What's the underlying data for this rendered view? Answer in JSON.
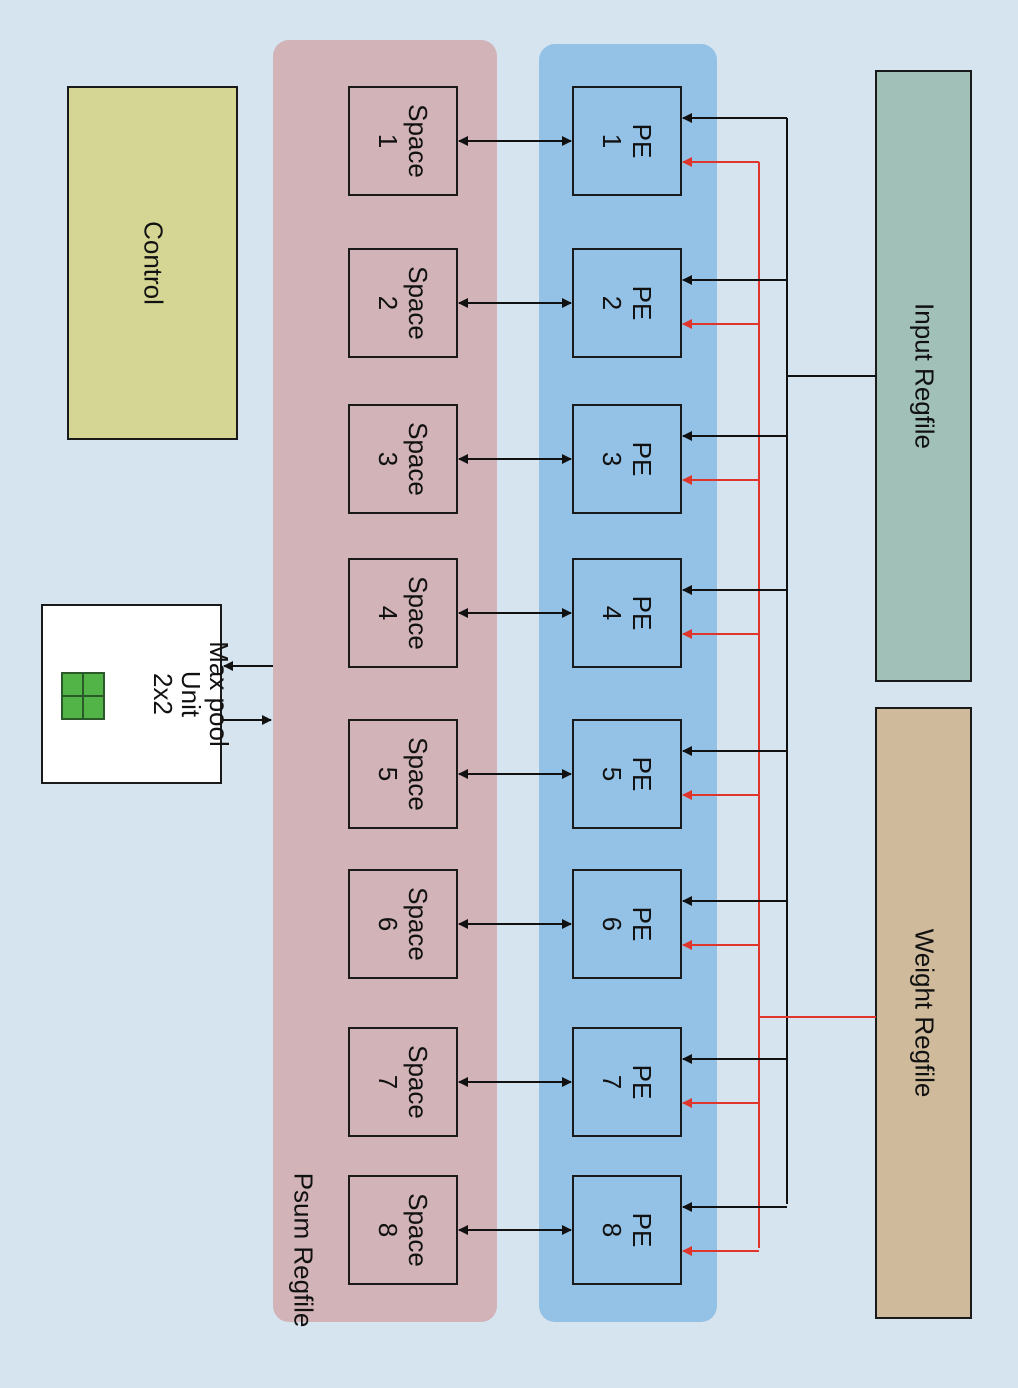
{
  "colors": {
    "background": "#d6e4f0",
    "psum_region": "#d1b3b8",
    "pe_region": "#94c2e6",
    "control": "#d5d693",
    "input_regfile": "#a0c0b8",
    "weight_regfile": "#cfbb9b",
    "input_wire": "#111111",
    "weight_wire": "#e0352b",
    "maxpool_grid": "#52b346"
  },
  "control": {
    "label": "Control"
  },
  "maxpool": {
    "line1": "Max pool",
    "line2": "Unit",
    "line3": "2x2"
  },
  "psum": {
    "label": "Psum Regfile",
    "cells": [
      {
        "name": "Space",
        "index": "1"
      },
      {
        "name": "Space",
        "index": "2"
      },
      {
        "name": "Space",
        "index": "3"
      },
      {
        "name": "Space",
        "index": "4"
      },
      {
        "name": "Space",
        "index": "5"
      },
      {
        "name": "Space",
        "index": "6"
      },
      {
        "name": "Space",
        "index": "7"
      },
      {
        "name": "Space",
        "index": "8"
      }
    ]
  },
  "pe": {
    "cells": [
      {
        "name": "PE",
        "index": "1"
      },
      {
        "name": "PE",
        "index": "2"
      },
      {
        "name": "PE",
        "index": "3"
      },
      {
        "name": "PE",
        "index": "4"
      },
      {
        "name": "PE",
        "index": "5"
      },
      {
        "name": "PE",
        "index": "6"
      },
      {
        "name": "PE",
        "index": "7"
      },
      {
        "name": "PE",
        "index": "8"
      }
    ]
  },
  "input_regfile": {
    "label": "Input Regfile"
  },
  "weight_regfile": {
    "label": "Weight Regfile"
  }
}
